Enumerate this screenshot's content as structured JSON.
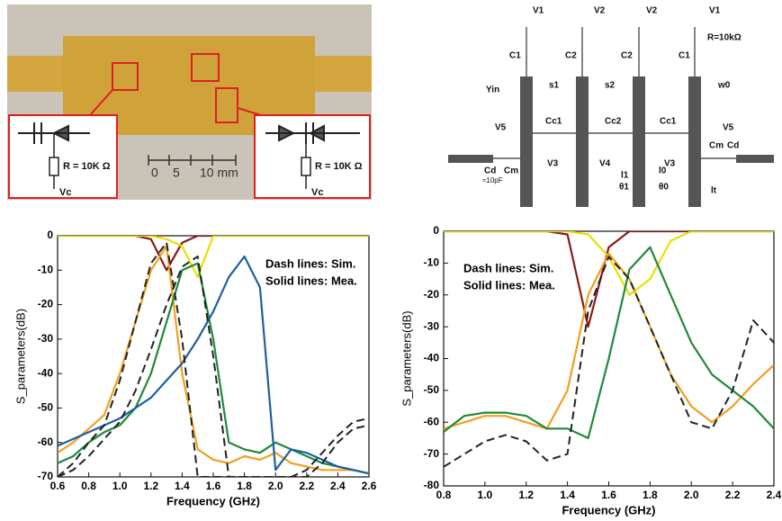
{
  "photo": {
    "labels": [
      "R = 10K Ω",
      "Vc",
      "R = 10K Ω",
      "Vc",
      "0",
      "5",
      "10 mm"
    ]
  },
  "schematic": {
    "labels": [
      "V1",
      "V2",
      "V2",
      "V1",
      "C1",
      "C2",
      "C2",
      "C1",
      "R=10kΩ",
      "Yin",
      "s1",
      "s2",
      "w0",
      "V5",
      "Cc1",
      "Cc2",
      "Cc1",
      "V5",
      "Cm",
      "Cd",
      "V3",
      "V4",
      "V3",
      "Cd",
      "Cm",
      "≈10pF",
      "l1",
      "θ1",
      "l0",
      "θ0",
      "lt"
    ]
  },
  "chart_data": [
    {
      "type": "line",
      "xlabel": "Frequency (GHz)",
      "ylabel": "S_parameters(dB)",
      "annotations": [
        "Dash lines: Sim.",
        "Solid lines: Mea."
      ],
      "x": [
        0.6,
        0.7,
        0.8,
        0.9,
        1.0,
        1.1,
        1.2,
        1.3,
        1.4,
        1.5,
        1.6,
        1.7,
        1.8,
        1.9,
        2.0,
        2.1,
        2.2,
        2.3,
        2.4,
        2.5,
        2.6
      ],
      "xlim": [
        0.6,
        2.6
      ],
      "xticks": [
        0.6,
        0.8,
        {
          "value": 1,
          "label": "1.0"
        },
        1.2,
        1.4,
        1.6,
        1.8,
        {
          "value": 2,
          "label": "2.0"
        },
        2.2,
        2.4,
        2.6
      ],
      "ylim": [
        -70,
        0
      ],
      "yticks": [
        -70,
        -60,
        -50,
        -40,
        -30,
        -20,
        -10,
        0
      ],
      "series": [
        {
          "color": "#8b1a1a",
          "dash": false,
          "values": [
            0,
            0,
            0,
            0,
            0,
            0,
            -1,
            -10,
            -2,
            0,
            0,
            0,
            0,
            0,
            0,
            0,
            0,
            0,
            0,
            0,
            0
          ]
        },
        {
          "color": "#e8e000",
          "dash": false,
          "values": [
            0,
            0,
            0,
            0,
            0,
            0,
            0,
            -1,
            -3,
            -12,
            0,
            0,
            0,
            0,
            0,
            0,
            0,
            0,
            0,
            0,
            0
          ]
        },
        {
          "color": "#f0a020",
          "dash": false,
          "values": [
            -63,
            -60,
            -56,
            -52,
            -40,
            -25,
            -10,
            -3,
            -40,
            -62,
            -65,
            -66,
            -64,
            -65,
            -63,
            -66,
            -67,
            -68,
            -68,
            -68,
            -69
          ]
        },
        {
          "color": "#1e8a3a",
          "dash": false,
          "values": [
            -66,
            -64,
            -60,
            -57,
            -55,
            -50,
            -40,
            -25,
            -10,
            -8,
            -30,
            -60,
            -62,
            -63,
            -60,
            -62,
            -64,
            -66,
            -67,
            -68,
            -69
          ]
        },
        {
          "color": "#1f5fa0",
          "dash": false,
          "values": [
            -61,
            -59,
            -57,
            -55,
            -53,
            -50,
            -47,
            -42,
            -37,
            -30,
            -22,
            -12,
            -6,
            -15,
            -68,
            -62,
            -63,
            -65,
            -67,
            -68,
            -69
          ]
        },
        {
          "color": "#222222",
          "dash": true,
          "values": [
            -70,
            -66,
            -60,
            -55,
            -42,
            -25,
            -8,
            -2,
            -30,
            -70,
            -70,
            -70,
            -70,
            -70,
            -70,
            -70,
            -70,
            -66,
            -60,
            -56,
            -55
          ]
        },
        {
          "color": "#222222",
          "dash": true,
          "values": [
            -70,
            -68,
            -64,
            -59,
            -54,
            -45,
            -33,
            -20,
            -9,
            -6,
            -35,
            -70,
            -70,
            -70,
            -70,
            -70,
            -68,
            -63,
            -58,
            -54,
            -53
          ]
        }
      ]
    },
    {
      "type": "line",
      "xlabel": "Frequency (GHz)",
      "ylabel": "S_parameters(dB)",
      "annotations": [
        "Dash lines: Sim.",
        "Solid lines: Mea."
      ],
      "x": [
        0.8,
        0.9,
        1.0,
        1.1,
        1.2,
        1.3,
        1.4,
        1.5,
        1.6,
        1.7,
        1.8,
        1.9,
        2.0,
        2.1,
        2.2,
        2.3,
        2.4
      ],
      "xlim": [
        0.8,
        2.4
      ],
      "xticks": [
        0.8,
        {
          "value": 1,
          "label": "1.0"
        },
        1.2,
        1.4,
        1.6,
        1.8,
        {
          "value": 2,
          "label": "2.0"
        },
        2.2,
        2.4
      ],
      "ylim": [
        -80,
        0
      ],
      "yticks": [
        -80,
        -70,
        -60,
        -50,
        -40,
        -30,
        -20,
        -10,
        0
      ],
      "series": [
        {
          "color": "#8b1a1a",
          "dash": false,
          "values": [
            0,
            0,
            0,
            0,
            0,
            0,
            -1,
            -30,
            -5,
            0,
            0,
            0,
            0,
            0,
            0,
            0,
            0
          ]
        },
        {
          "color": "#e8e000",
          "dash": false,
          "values": [
            0,
            0,
            0,
            0,
            0,
            0,
            0,
            -1,
            -8,
            -20,
            -15,
            -3,
            0,
            0,
            0,
            0,
            0
          ]
        },
        {
          "color": "#f0a020",
          "dash": false,
          "values": [
            -62,
            -60,
            -58,
            -58,
            -60,
            -62,
            -50,
            -20,
            -7,
            -15,
            -30,
            -45,
            -55,
            -60,
            -55,
            -48,
            -42
          ]
        },
        {
          "color": "#1e8a3a",
          "dash": false,
          "values": [
            -63,
            -58,
            -57,
            -57,
            -58,
            -62,
            -62,
            -65,
            -40,
            -12,
            -5,
            -20,
            -35,
            -45,
            -50,
            -55,
            -62
          ]
        },
        {
          "color": "#222222",
          "dash": true,
          "values": [
            -74,
            -70,
            -66,
            -64,
            -66,
            -72,
            -70,
            -25,
            -8,
            -15,
            -30,
            -45,
            -60,
            -62,
            -50,
            -28,
            -35
          ]
        }
      ]
    }
  ]
}
